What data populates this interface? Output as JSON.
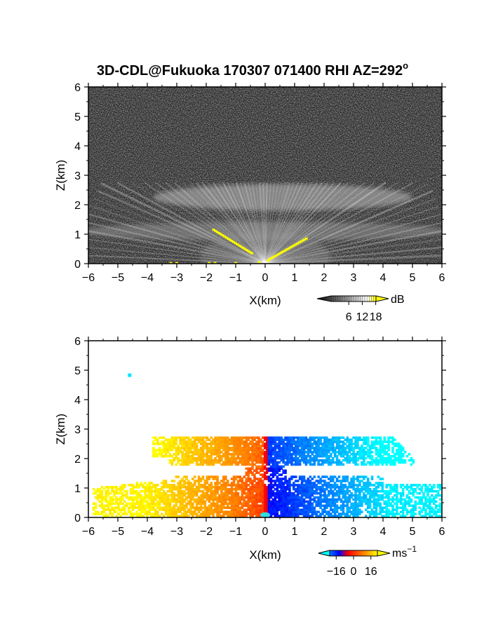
{
  "title": "3D-CDL@Fukuoka 170307 071400 RHI AZ=292",
  "title_sup": "o",
  "chart_data": [
    {
      "type": "heatmap",
      "panel": "reflectivity",
      "xlabel": "X(km)",
      "ylabel": "Z(km)",
      "xlim": [
        -6,
        6
      ],
      "ylim": [
        0,
        6
      ],
      "xticks": [
        "-6",
        "-5",
        "-4",
        "-3",
        "-2",
        "-1",
        "0",
        "1",
        "2",
        "3",
        "4",
        "5",
        "6"
      ],
      "yticks": [
        "0",
        "1",
        "2",
        "3",
        "4",
        "5",
        "6"
      ],
      "colorbar": {
        "unit": "dB",
        "ticks": [
          "6",
          "12",
          "18"
        ],
        "tick_values": [
          6,
          12,
          18
        ],
        "range": [
          0,
          20
        ],
        "colormap": [
          "#000000",
          "#ffffff",
          "#ffff00"
        ]
      },
      "features": [
        {
          "name": "upper layer",
          "x_range": [
            -3.8,
            5.0
          ],
          "z_range": [
            1.8,
            2.7
          ]
        },
        {
          "name": "lower layer",
          "x_range": [
            -6.0,
            6.0
          ],
          "z_range": [
            0.9,
            1.4
          ]
        },
        {
          "name": "strong returns",
          "x_range": [
            -1.8,
            1.4
          ],
          "z_range": [
            0.0,
            1.2
          ],
          "color": "#ffff00"
        }
      ],
      "grid": false
    },
    {
      "type": "heatmap",
      "panel": "doppler velocity",
      "xlabel": "X(km)",
      "ylabel": "Z(km)",
      "xlim": [
        -6,
        6
      ],
      "ylim": [
        0,
        6
      ],
      "xticks": [
        "-6",
        "-5",
        "-4",
        "-3",
        "-2",
        "-1",
        "0",
        "1",
        "2",
        "3",
        "4",
        "5",
        "6"
      ],
      "yticks": [
        "0",
        "1",
        "2",
        "3",
        "4",
        "5",
        "6"
      ],
      "colorbar": {
        "unit": "ms",
        "unit_sup": "−1",
        "ticks": [
          "−16",
          "0",
          "16"
        ],
        "tick_values": [
          -16,
          0,
          16
        ],
        "range": [
          -22,
          22
        ],
        "colormap": [
          "#00ffff",
          "#0000ff",
          "#ff0000",
          "#ffff00"
        ]
      },
      "features": [
        {
          "name": "upper layer west",
          "x_range": [
            -3.8,
            0
          ],
          "z_range": [
            1.8,
            2.7
          ],
          "velocity": 15
        },
        {
          "name": "upper layer east",
          "x_range": [
            0,
            5.0
          ],
          "z_range": [
            1.8,
            2.7
          ],
          "velocity": -15
        },
        {
          "name": "lower layer west",
          "x_range": [
            -5.9,
            0
          ],
          "z_range": [
            0.0,
            1.4
          ],
          "velocity": 12
        },
        {
          "name": "lower layer east",
          "x_range": [
            0,
            6.0
          ],
          "z_range": [
            0.0,
            1.4
          ],
          "velocity": -14
        },
        {
          "name": "isolated echo",
          "x": -4.6,
          "z": 4.83,
          "velocity": -20
        }
      ],
      "grid": false
    }
  ]
}
